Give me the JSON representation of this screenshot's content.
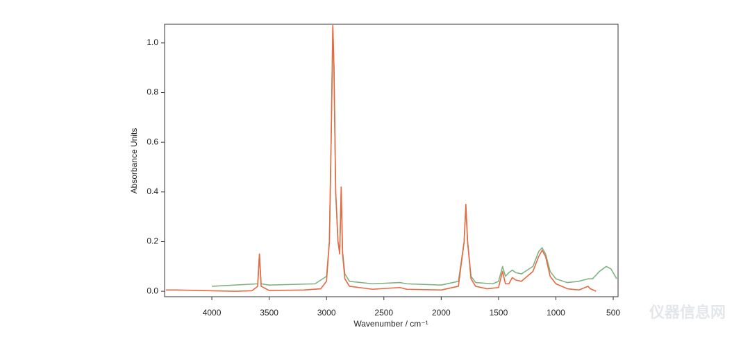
{
  "chart_data": {
    "type": "line",
    "xlabel": "Wavenumber / cm⁻¹",
    "ylabel": "Absorbance Units",
    "xlim": [
      4412,
      458
    ],
    "ylim": [
      -0.022,
      1.075
    ],
    "xticks": [
      4000,
      3500,
      3000,
      2500,
      2000,
      1500,
      1000,
      500
    ],
    "yticks": [
      {
        "value": 0,
        "label": "0.0"
      },
      0.2,
      0.4,
      0.6,
      0.8,
      {
        "value": 1,
        "label": "1.0"
      }
    ],
    "series": [
      {
        "color": "#7fb383",
        "x": [
          4000,
          3800,
          3600,
          3585,
          3570,
          3500,
          3100,
          3000,
          2975,
          2960,
          2945,
          2935,
          2920,
          2900,
          2885,
          2872,
          2860,
          2840,
          2800,
          2600,
          2360,
          2300,
          2000,
          1850,
          1800,
          1785,
          1770,
          1740,
          1700,
          1550,
          1500,
          1465,
          1440,
          1410,
          1380,
          1350,
          1300,
          1200,
          1150,
          1120,
          1090,
          1050,
          1000,
          900,
          800,
          720,
          680,
          620,
          560,
          520,
          470
        ],
        "values": [
          0.02,
          0.025,
          0.03,
          0.15,
          0.03,
          0.025,
          0.03,
          0.06,
          0.2,
          0.6,
          1.07,
          0.9,
          0.4,
          0.2,
          0.16,
          0.4,
          0.16,
          0.07,
          0.04,
          0.03,
          0.035,
          0.03,
          0.025,
          0.04,
          0.2,
          0.34,
          0.2,
          0.06,
          0.035,
          0.03,
          0.04,
          0.1,
          0.06,
          0.075,
          0.085,
          0.075,
          0.07,
          0.1,
          0.16,
          0.175,
          0.15,
          0.08,
          0.05,
          0.035,
          0.04,
          0.05,
          0.05,
          0.08,
          0.1,
          0.09,
          0.05
        ]
      },
      {
        "color": "#e8683f",
        "x": [
          4400,
          4300,
          4100,
          4000,
          3800,
          3650,
          3600,
          3585,
          3570,
          3500,
          3200,
          3050,
          3000,
          2975,
          2960,
          2945,
          2935,
          2920,
          2900,
          2885,
          2872,
          2860,
          2840,
          2800,
          2600,
          2360,
          2300,
          2000,
          1850,
          1800,
          1785,
          1770,
          1740,
          1700,
          1600,
          1500,
          1465,
          1440,
          1410,
          1380,
          1350,
          1300,
          1200,
          1150,
          1120,
          1090,
          1050,
          1000,
          900,
          800,
          720,
          700,
          650
        ],
        "values": [
          0.005,
          0.005,
          0.003,
          0.002,
          0.0,
          0.002,
          0.02,
          0.15,
          0.02,
          0.003,
          0.005,
          0.01,
          0.04,
          0.2,
          0.6,
          1.07,
          0.9,
          0.4,
          0.2,
          0.15,
          0.42,
          0.15,
          0.05,
          0.02,
          0.008,
          0.015,
          0.008,
          0.005,
          0.02,
          0.2,
          0.35,
          0.2,
          0.05,
          0.02,
          0.01,
          0.015,
          0.08,
          0.03,
          0.03,
          0.055,
          0.045,
          0.04,
          0.08,
          0.14,
          0.165,
          0.14,
          0.06,
          0.03,
          0.01,
          0.005,
          0.02,
          0.01,
          0.0
        ]
      }
    ]
  },
  "watermark": "仪器信息网"
}
